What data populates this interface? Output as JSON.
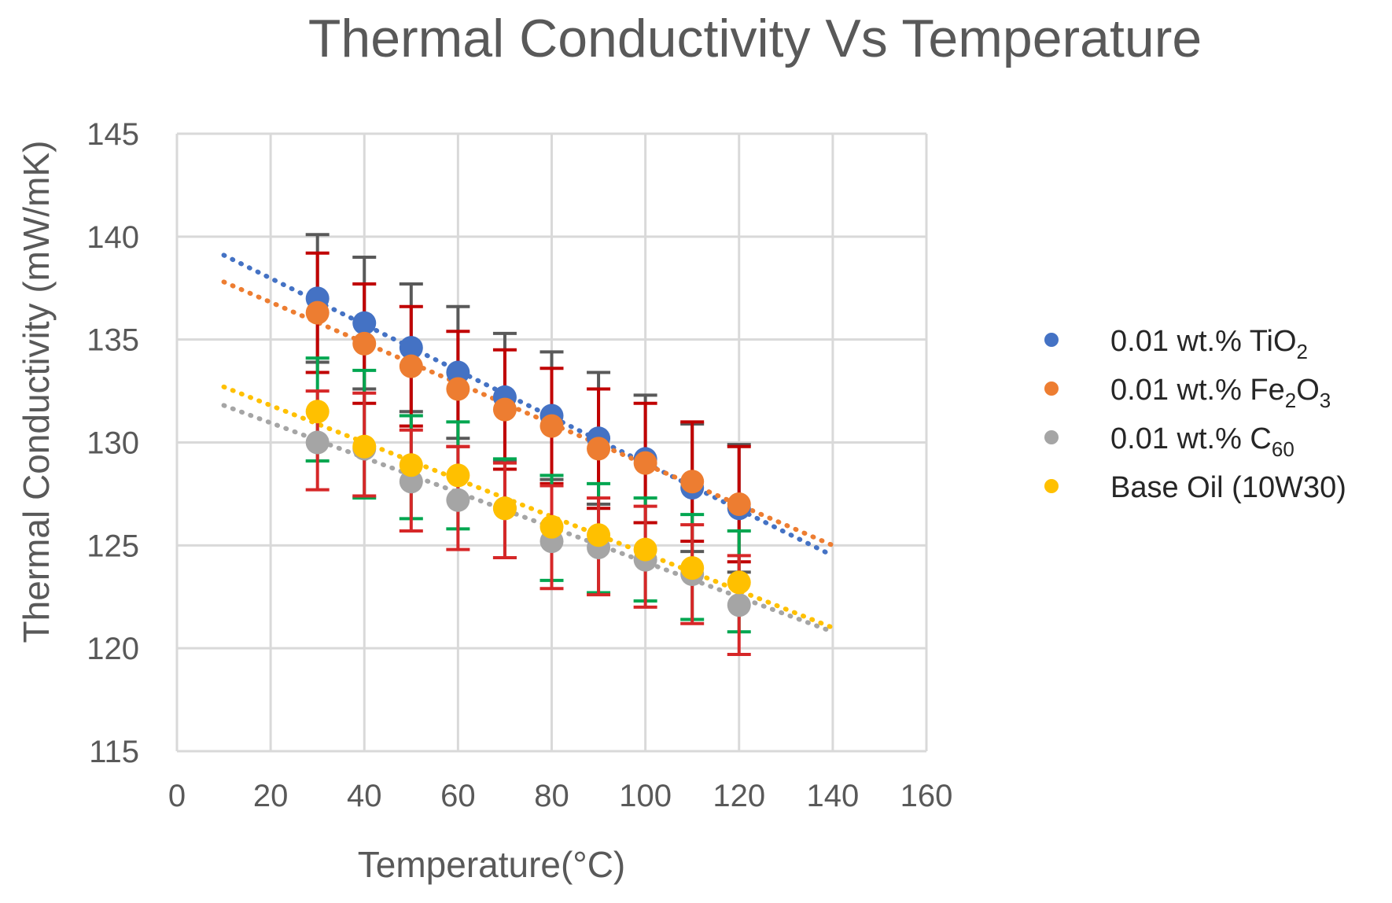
{
  "chart_data": {
    "type": "scatter",
    "title": "Thermal Conductivity Vs Temperature",
    "xlabel": "Temperature(°C)",
    "ylabel": "Thermal Conductivity (mW/mK)",
    "xlim": [
      0,
      160
    ],
    "ylim": [
      115,
      145
    ],
    "xticks": [
      0,
      20,
      40,
      60,
      80,
      100,
      120,
      140,
      160
    ],
    "yticks": [
      115,
      120,
      125,
      130,
      135,
      140,
      145
    ],
    "grid": true,
    "legend_position": "right",
    "x": [
      30,
      40,
      50,
      60,
      70,
      80,
      90,
      100,
      110,
      120
    ],
    "trendline_type": "linear",
    "trendline_range": [
      10,
      140
    ],
    "series": [
      {
        "name": "0.01 wt.% TiO2",
        "label_main": "0.01 wt.% TiO",
        "label_sub": "2",
        "label_tail": "",
        "color": "#4472c4",
        "error_color": "#595959",
        "values": [
          137.0,
          135.8,
          134.6,
          133.4,
          132.2,
          131.3,
          130.2,
          129.2,
          127.8,
          126.8
        ],
        "error_upper": [
          140.1,
          139.0,
          137.7,
          136.6,
          135.3,
          134.4,
          133.4,
          132.3,
          130.9,
          129.9
        ],
        "error_lower": [
          133.9,
          132.6,
          131.5,
          130.2,
          129.1,
          128.2,
          127.0,
          126.1,
          124.7,
          123.7
        ],
        "trend": [
          139.1,
          124.5
        ]
      },
      {
        "name": "0.01 wt.% Fe2O3",
        "label_main": "0.01 wt.% Fe",
        "label_sub": "2",
        "label_tail": "O",
        "label_sub2": "3",
        "color": "#ed7d31",
        "error_color": "#c00000",
        "values": [
          136.3,
          134.8,
          133.7,
          132.6,
          131.6,
          130.8,
          129.7,
          129.0,
          128.1,
          127.0
        ],
        "error_upper": [
          139.2,
          137.7,
          136.6,
          135.4,
          134.5,
          133.6,
          132.6,
          131.9,
          131.0,
          129.8
        ],
        "error_lower": [
          133.4,
          131.9,
          130.8,
          129.8,
          128.7,
          128.0,
          126.8,
          126.1,
          125.2,
          124.2
        ],
        "trend": [
          137.8,
          125.0
        ]
      },
      {
        "name": "0.01 wt.% C60",
        "label_main": "0.01 wt.% C",
        "label_sub": "60",
        "label_tail": "",
        "color": "#a5a5a5",
        "error_color": "#00a650",
        "values": [
          130.0,
          129.7,
          128.1,
          127.2,
          126.8,
          125.2,
          124.9,
          124.3,
          123.6,
          122.1
        ],
        "error_upper": [
          134.1,
          133.5,
          131.3,
          131.0,
          129.2,
          128.4,
          128.0,
          127.3,
          126.5,
          125.7
        ],
        "error_lower": [
          129.1,
          127.3,
          126.3,
          125.8,
          124.4,
          123.3,
          122.7,
          122.3,
          121.4,
          120.8
        ],
        "trend": [
          131.8,
          120.8
        ]
      },
      {
        "name": "Base Oil (10W30)",
        "label_main": "Base Oil (10W30)",
        "label_sub": "",
        "label_tail": "",
        "color": "#ffc000",
        "error_color": "#d62728",
        "values": [
          131.5,
          129.8,
          128.9,
          128.4,
          126.8,
          125.9,
          125.5,
          124.8,
          123.9,
          123.2
        ],
        "error_upper": [
          132.5,
          132.4,
          130.6,
          129.8,
          129.0,
          127.9,
          127.3,
          126.9,
          126.0,
          124.5
        ],
        "error_lower": [
          127.7,
          127.4,
          125.7,
          124.8,
          124.4,
          122.9,
          122.6,
          122.0,
          121.2,
          119.7
        ],
        "trend": [
          132.7,
          121.0
        ]
      }
    ]
  }
}
